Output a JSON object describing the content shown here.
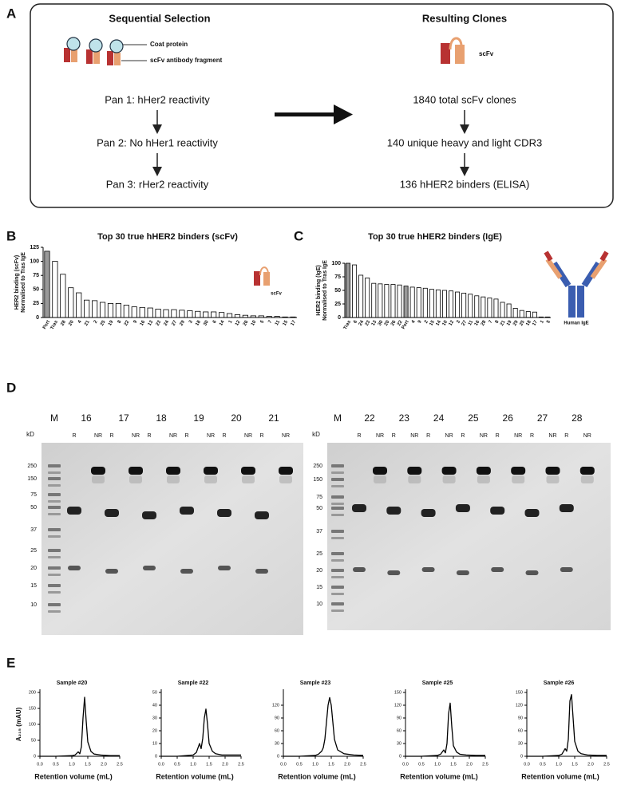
{
  "panels": [
    "A",
    "B",
    "C",
    "D",
    "E"
  ],
  "selection": {
    "title": "Sequential Selection",
    "legend": [
      "Coat protein",
      "scFv antibody fragment"
    ],
    "steps": [
      "Pan 1: hHer2 reactivity",
      "Pan 2: No hHer1 reactivity",
      "Pan 3: rHer2 reactivity"
    ]
  },
  "clones": {
    "title": "Resulting Clones",
    "icon_label": "scFv",
    "steps": [
      "1840 total scFv clones",
      "140 unique heavy and light CDR3",
      "136 hHER2 binders (ELISA)"
    ]
  },
  "chart_data": [
    {
      "type": "bar",
      "title": "Top 30 true hHER2 binders (scFv)",
      "ylabel": [
        "HER2 binding (scFv)",
        "Normalised to Tras IgE"
      ],
      "annotation": "scFv",
      "categories": [
        "Pert",
        "Tras",
        "28",
        "20",
        "4",
        "21",
        "2",
        "25",
        "19",
        "8",
        "22",
        "9",
        "16",
        "13",
        "23",
        "24",
        "27",
        "29",
        "3",
        "18",
        "30",
        "6",
        "14",
        "1",
        "12",
        "26",
        "10",
        "5",
        "7",
        "11",
        "15",
        "17"
      ],
      "values": [
        118,
        100,
        77,
        53,
        44,
        31,
        30,
        27,
        25,
        25,
        22,
        19,
        18,
        17,
        15,
        14,
        14,
        13,
        12,
        11,
        10,
        10,
        9,
        7,
        5,
        4,
        3,
        3,
        2,
        2,
        1,
        1
      ],
      "colors": [
        "#999999",
        "#ffffff",
        "#ffffff",
        "#ffffff",
        "#ffffff",
        "#ffffff",
        "#ffffff",
        "#ffffff",
        "#ffffff",
        "#ffffff",
        "#ffffff",
        "#ffffff",
        "#ffffff",
        "#ffffff",
        "#ffffff",
        "#ffffff",
        "#ffffff",
        "#ffffff",
        "#ffffff",
        "#ffffff",
        "#ffffff",
        "#ffffff",
        "#ffffff",
        "#ffffff",
        "#ffffff",
        "#ffffff",
        "#ffffff",
        "#ffffff",
        "#ffffff",
        "#ffffff",
        "#ffffff",
        "#ffffff"
      ],
      "ylim": [
        0,
        125
      ],
      "yticks": [
        0,
        25,
        50,
        75,
        100,
        125
      ]
    },
    {
      "type": "bar",
      "title": "Top 30 true hHER2 binders (IgE)",
      "ylabel": [
        "HER2 binding (IgE)",
        "Normalised to Tras IgE"
      ],
      "annotation": "Human IgE",
      "categories": [
        "Tras",
        "6",
        "24",
        "23",
        "13",
        "30",
        "20",
        "26",
        "22",
        "Pert",
        "4",
        "9",
        "2",
        "15",
        "14",
        "10",
        "12",
        "3",
        "27",
        "11",
        "16",
        "28",
        "7",
        "8",
        "21",
        "19",
        "29",
        "25",
        "18",
        "17",
        "1",
        "5"
      ],
      "values": [
        100,
        97,
        78,
        73,
        63,
        62,
        61,
        61,
        60,
        58,
        56,
        55,
        54,
        52,
        51,
        50,
        49,
        47,
        45,
        43,
        40,
        38,
        36,
        34,
        28,
        25,
        17,
        13,
        11,
        10,
        1,
        1
      ],
      "colors": [
        "#999999",
        "#ffffff",
        "#ffffff",
        "#ffffff",
        "#ffffff",
        "#ffffff",
        "#ffffff",
        "#ffffff",
        "#ffffff",
        "#999999",
        "#ffffff",
        "#ffffff",
        "#ffffff",
        "#ffffff",
        "#ffffff",
        "#ffffff",
        "#ffffff",
        "#ffffff",
        "#ffffff",
        "#ffffff",
        "#ffffff",
        "#ffffff",
        "#ffffff",
        "#ffffff",
        "#ffffff",
        "#ffffff",
        "#ffffff",
        "#ffffff",
        "#ffffff",
        "#ffffff",
        "#ffffff",
        "#ffffff"
      ],
      "ylim": [
        0,
        100
      ],
      "yticks": [
        0,
        25,
        50,
        75,
        100
      ]
    },
    {
      "type": "line",
      "title": "Sample #20",
      "xlabel": "Retention volume (mL)",
      "ylabel": "A₂₁₅ (mAU)",
      "color": "#000000",
      "x": [
        0,
        0.5,
        1.0,
        1.1,
        1.2,
        1.25,
        1.3,
        1.35,
        1.4,
        1.45,
        1.5,
        1.6,
        1.7,
        1.9,
        2.2,
        2.5
      ],
      "values": [
        0,
        0,
        2,
        4,
        14,
        8,
        30,
        120,
        185,
        110,
        45,
        15,
        7,
        4,
        2,
        2
      ],
      "xlim": [
        0,
        2.5
      ],
      "xticks": [
        {
          "value": 0,
          "label": "0.0"
        },
        0.5,
        {
          "value": 1,
          "label": "1.0"
        },
        1.5,
        {
          "value": 2,
          "label": "2.0"
        },
        2.5
      ],
      "ylim": [
        0,
        200
      ],
      "yticks": [
        0,
        50,
        100,
        150,
        200
      ]
    },
    {
      "type": "line",
      "title": "Sample #22",
      "xlabel": "Retention volume (mL)",
      "color": "#000000",
      "x": [
        0,
        0.5,
        1.0,
        1.1,
        1.2,
        1.25,
        1.3,
        1.35,
        1.4,
        1.45,
        1.5,
        1.6,
        1.7,
        1.9,
        2.2,
        2.5
      ],
      "values": [
        0,
        0,
        1,
        3,
        10,
        6,
        14,
        30,
        37,
        25,
        10,
        4,
        2,
        1,
        1,
        1
      ],
      "xlim": [
        0,
        2.5
      ],
      "xticks": [
        {
          "value": 0,
          "label": "0.0"
        },
        0.5,
        {
          "value": 1,
          "label": "1.0"
        },
        1.5,
        {
          "value": 2,
          "label": "2.0"
        },
        2.5
      ],
      "ylim": [
        0,
        50
      ],
      "yticks": [
        0,
        10,
        20,
        30,
        40,
        50
      ]
    },
    {
      "type": "line",
      "title": "Sample #23",
      "xlabel": "Retention volume (mL)",
      "color": "#000000",
      "x": [
        0,
        0.5,
        1.0,
        1.1,
        1.2,
        1.25,
        1.3,
        1.35,
        1.4,
        1.45,
        1.5,
        1.6,
        1.7,
        1.9,
        2.2,
        2.5
      ],
      "values": [
        0,
        0,
        2,
        5,
        12,
        20,
        40,
        80,
        120,
        138,
        120,
        40,
        15,
        6,
        3,
        2
      ],
      "xlim": [
        0,
        2.5
      ],
      "xticks": [
        {
          "value": 0,
          "label": "0.0"
        },
        0.5,
        {
          "value": 1,
          "label": "1.0"
        },
        1.5,
        {
          "value": 2,
          "label": "2.0"
        },
        2.5
      ],
      "ylim": [
        0,
        150
      ],
      "yticks": [
        0,
        30,
        60,
        90,
        120
      ]
    },
    {
      "type": "line",
      "title": "Sample #25",
      "xlabel": "Retention volume (mL)",
      "color": "#000000",
      "x": [
        0,
        0.5,
        1.0,
        1.1,
        1.2,
        1.25,
        1.3,
        1.35,
        1.4,
        1.45,
        1.5,
        1.6,
        1.7,
        1.9,
        2.2,
        2.5
      ],
      "values": [
        0,
        0,
        2,
        5,
        15,
        8,
        30,
        100,
        125,
        70,
        25,
        10,
        5,
        3,
        2,
        2
      ],
      "xlim": [
        0,
        2.5
      ],
      "xticks": [
        {
          "value": 0,
          "label": "0.0"
        },
        0.5,
        {
          "value": 1,
          "label": "1.0"
        },
        1.5,
        {
          "value": 2,
          "label": "2.0"
        },
        2.5
      ],
      "ylim": [
        0,
        150
      ],
      "yticks": [
        0,
        30,
        60,
        90,
        120,
        150
      ]
    },
    {
      "type": "line",
      "title": "Sample #26",
      "xlabel": "Retention volume (mL)",
      "color": "#000000",
      "x": [
        0,
        0.5,
        1.0,
        1.1,
        1.2,
        1.25,
        1.3,
        1.35,
        1.4,
        1.45,
        1.5,
        1.6,
        1.7,
        1.9,
        2.2,
        2.5
      ],
      "values": [
        0,
        0,
        2,
        5,
        18,
        12,
        40,
        130,
        145,
        90,
        35,
        12,
        6,
        3,
        2,
        2
      ],
      "xlim": [
        0,
        2.5
      ],
      "xticks": [
        {
          "value": 0,
          "label": "0.0"
        },
        0.5,
        {
          "value": 1,
          "label": "1.0"
        },
        1.5,
        {
          "value": 2,
          "label": "2.0"
        },
        2.5
      ],
      "ylim": [
        0,
        150
      ],
      "yticks": [
        0,
        30,
        60,
        90,
        120,
        150
      ]
    }
  ],
  "gels": [
    {
      "marker_lane": "M",
      "unit": "kD",
      "markers": [
        250,
        150,
        75,
        50,
        37,
        25,
        20,
        15,
        10
      ],
      "samples": [
        "16",
        "17",
        "18",
        "19",
        "20",
        "21"
      ],
      "conditions": [
        "R",
        "NR"
      ]
    },
    {
      "marker_lane": "M",
      "unit": "kD",
      "markers": [
        250,
        150,
        75,
        50,
        37,
        25,
        20,
        15,
        10
      ],
      "samples": [
        "22",
        "23",
        "24",
        "25",
        "26",
        "27",
        "28"
      ],
      "conditions": [
        "R",
        "NR"
      ]
    }
  ]
}
